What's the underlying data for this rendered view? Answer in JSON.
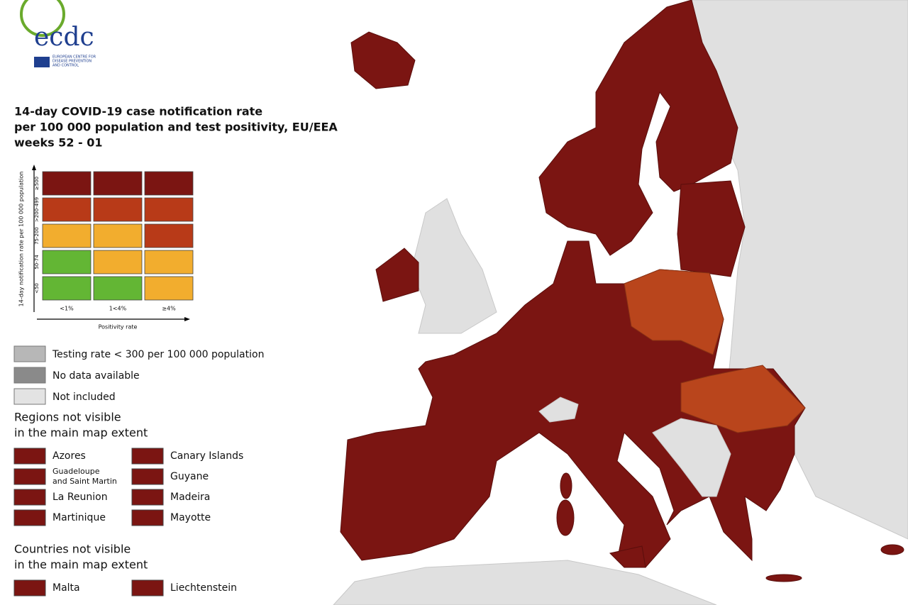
{
  "logo": {
    "text": "ecdc",
    "subtitle": [
      "EUROPEAN CENTRE FOR",
      "DISEASE PREVENTION",
      "AND CONTROL"
    ]
  },
  "title": [
    "14-day COVID-19 case notification rate",
    "per 100 000 population and test positivity, EU/EEA",
    "weeks 52 - 01"
  ],
  "matrix": {
    "y_label": "14-day notification rate per 100 000 population",
    "rows": [
      "≥500",
      ">200-499",
      "75-200",
      "50-74",
      "<50"
    ],
    "columns": [
      "<1%",
      "1<4%",
      "≥4%"
    ],
    "x_label": "Positivity rate",
    "cells": [
      [
        "#7b1512",
        "#7b1512",
        "#7b1512"
      ],
      [
        "#b83a18",
        "#b83a18",
        "#b83a18"
      ],
      [
        "#f2ad2e",
        "#f2ad2e",
        "#b83a18"
      ],
      [
        "#63b634",
        "#f2ad2e",
        "#f2ad2e"
      ],
      [
        "#63b634",
        "#63b634",
        "#f2ad2e"
      ]
    ]
  },
  "legend": [
    {
      "label": "Testing rate < 300 per 100 000 population",
      "color": "#b7b7b7"
    },
    {
      "label": "No data available",
      "color": "#8a8a8a"
    },
    {
      "label": "Not included",
      "color": "#e3e3e3"
    }
  ],
  "regions": {
    "heading": [
      "Regions not visible",
      "in the main map extent"
    ],
    "items": [
      [
        "Azores"
      ],
      [
        "Canary Islands"
      ],
      [
        "Guadeloupe",
        "and Saint Martin"
      ],
      [
        "Guyane"
      ],
      [
        "La Reunion"
      ],
      [
        "Madeira"
      ],
      [
        "Martinique"
      ],
      [
        "Mayotte"
      ]
    ]
  },
  "countries": {
    "heading": [
      "Countries not visible",
      "in the main map extent"
    ],
    "items": [
      [
        "Malta"
      ],
      [
        "Liechtenstein"
      ]
    ]
  }
}
